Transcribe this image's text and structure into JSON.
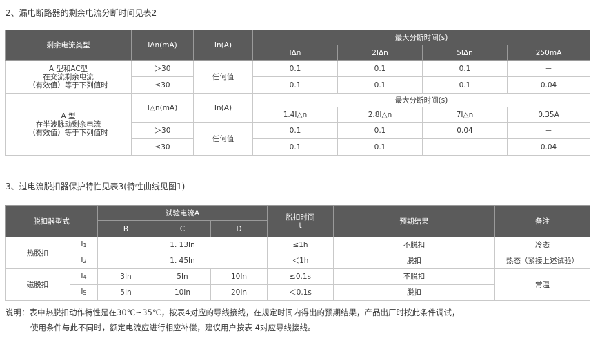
{
  "section2": {
    "title": "2、漏电断路器的剩余电流分断时间见表2",
    "hdr_type": "剩余电流类型",
    "hdr_idn": "IΔn(mA)",
    "hdr_in": "In(A)",
    "hdr_maxtime": "最大分断时间(s)",
    "hdr_cols": [
      "IΔn",
      "2IΔn",
      "5IΔn",
      "250mA"
    ],
    "ac_type": [
      "A 型和AC型",
      "在交流剩余电流",
      "（有效值）等于下列值时"
    ],
    "ac_rows": [
      {
        "idn": "＞30",
        "vals": [
          "0.1",
          "0.1",
          "0.1",
          "－"
        ]
      },
      {
        "idn": "≤30",
        "vals": [
          "0.1",
          "0.1",
          "0.1",
          "0.04"
        ]
      }
    ],
    "ac_in": "任何值",
    "a_type": [
      "A 型",
      "在半波脉动剩余电流",
      "（有效值）等于下列值时"
    ],
    "a_hdr_idn": "I△n(mA)",
    "a_hdr_in": "In(A)",
    "a_hdr_maxtime": "最大分断时间(s)",
    "a_hdr_cols": [
      "1.4I△n",
      "2.8I△n",
      "7I△n",
      "0.35A"
    ],
    "a_rows": [
      {
        "idn": "＞30",
        "vals": [
          "0.1",
          "0.1",
          "0.04",
          "－"
        ]
      },
      {
        "idn": "≤30",
        "vals": [
          "0.1",
          "0.1",
          "－",
          "0.04"
        ]
      }
    ],
    "a_in": "任何值"
  },
  "section3": {
    "title": "3、过电流脱扣器保护特性见表3(特性曲线见图1)",
    "hdr_form": "脱扣器型式",
    "hdr_current": "试验电流A",
    "hdr_b": "B",
    "hdr_c": "C",
    "hdr_d": "D",
    "hdr_time": [
      "脱扣时间",
      "t"
    ],
    "hdr_result": "预期结果",
    "hdr_remark": "备注",
    "thermal": "热脱扣",
    "magnetic": "磁脱扣",
    "rows": [
      {
        "code": "I",
        "sub": "1",
        "current": "1. 13In",
        "time": "≤1h",
        "result": "不脱扣",
        "remark": "冷态"
      },
      {
        "code": "I",
        "sub": "2",
        "current": "1. 45In",
        "time": "＜1h",
        "result": "脱扣",
        "remark": "热态（紧接上述试验）"
      },
      {
        "code": "I",
        "sub": "4",
        "b": "3In",
        "c": "5In",
        "d": "10In",
        "time": "≤0.1s",
        "result": "不脱扣"
      },
      {
        "code": "I",
        "sub": "5",
        "b": "5In",
        "c": "10In",
        "d": "20In",
        "time": "＜0.1s",
        "result": "脱扣"
      }
    ],
    "magnetic_remark": "常温"
  },
  "note": {
    "line1": "说明：表中热脱扣动作特性是在30℃~35℃，按表4对应的导线接线，在规定时间内得出的预期结果，产品出厂时按此条件调试，",
    "line2": "使用条件与此不同时，额定电流应进行相应补偿，建议用户按表 4对应导线接线。"
  }
}
